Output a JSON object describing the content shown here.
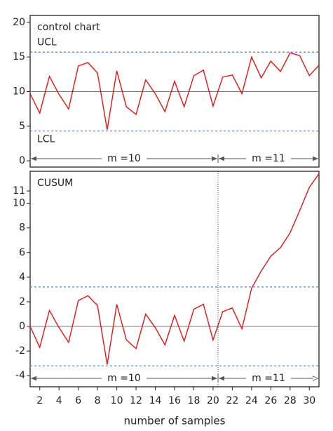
{
  "chart_data": [
    {
      "type": "line",
      "title": "control chart",
      "x": [
        1,
        2,
        3,
        4,
        5,
        6,
        7,
        8,
        9,
        10,
        11,
        12,
        13,
        14,
        15,
        16,
        17,
        18,
        19,
        20,
        21,
        22,
        23,
        24,
        25,
        26,
        27,
        28,
        29,
        30,
        31
      ],
      "series": [
        {
          "color": "#ee1111",
          "values": [
            9.7,
            6.9,
            12.2,
            9.6,
            7.5,
            13.7,
            14.2,
            12.7,
            4.5,
            13.0,
            7.8,
            6.7,
            11.7,
            9.7,
            7.1,
            11.5,
            7.8,
            12.3,
            13.1,
            7.9,
            12.1,
            12.4,
            9.7,
            15.0,
            12.0,
            14.4,
            12.9,
            15.6,
            15.2,
            12.3,
            13.8
          ]
        }
      ],
      "xlim": [
        1,
        31
      ],
      "ylim": [
        -0.9,
        21
      ],
      "yticks": [
        0,
        5,
        10,
        15,
        20
      ],
      "center_line": 10,
      "limit_color": "#4a7fd8",
      "limits": [
        {
          "label": "UCL",
          "value": 15.7
        },
        {
          "label": "LCL",
          "value": 4.3
        }
      ],
      "segments": [
        "m =10",
        "m =11"
      ]
    },
    {
      "type": "line",
      "title": "CUSUM",
      "x": [
        1,
        2,
        3,
        4,
        5,
        6,
        7,
        8,
        9,
        10,
        11,
        12,
        13,
        14,
        15,
        16,
        17,
        18,
        19,
        20,
        21,
        22,
        23,
        24,
        25,
        26,
        27,
        28,
        29,
        30,
        31
      ],
      "series": [
        {
          "color": "#ee1111",
          "values": [
            0,
            -1.7,
            1.3,
            -0.1,
            -1.3,
            2.1,
            2.5,
            1.7,
            -3.1,
            1.8,
            -1.1,
            -1.8,
            1.0,
            -0.1,
            -1.5,
            0.9,
            -1.2,
            1.4,
            1.8,
            -1.1,
            1.2,
            1.5,
            -0.2,
            3.1,
            4.5,
            5.7,
            6.4,
            7.6,
            9.4,
            11.3,
            12.4
          ]
        }
      ],
      "xlim": [
        1,
        31
      ],
      "ylim": [
        -4.9,
        12.6
      ],
      "yticks": [
        -4,
        -2,
        0,
        2,
        4,
        6,
        8,
        10,
        11
      ],
      "xticks": [
        2,
        4,
        6,
        8,
        10,
        12,
        14,
        16,
        18,
        20,
        22,
        24,
        26,
        28,
        30
      ],
      "xlabel": "number of samples",
      "center_line": 0,
      "limit_color": "#4a7fd8",
      "limits": [
        {
          "value": 3.2
        },
        {
          "value": -3.2
        }
      ],
      "segments": [
        "m =10",
        "m =11"
      ]
    }
  ]
}
